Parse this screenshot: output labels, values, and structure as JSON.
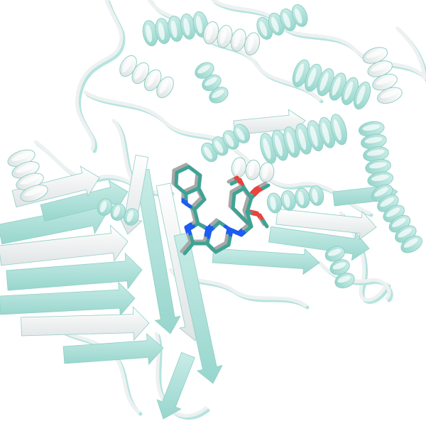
{
  "scene": {
    "background_color": "#ffffff",
    "structure_a_color": "#b4e4de",
    "structure_b_color": "#eef1f1",
    "ligand_carbon_a_color": "#3ea394",
    "ligand_carbon_b_color": "#a8a8a8",
    "nitrogen_color": "#1d5cf0",
    "oxygen_color": "#e8433f"
  }
}
